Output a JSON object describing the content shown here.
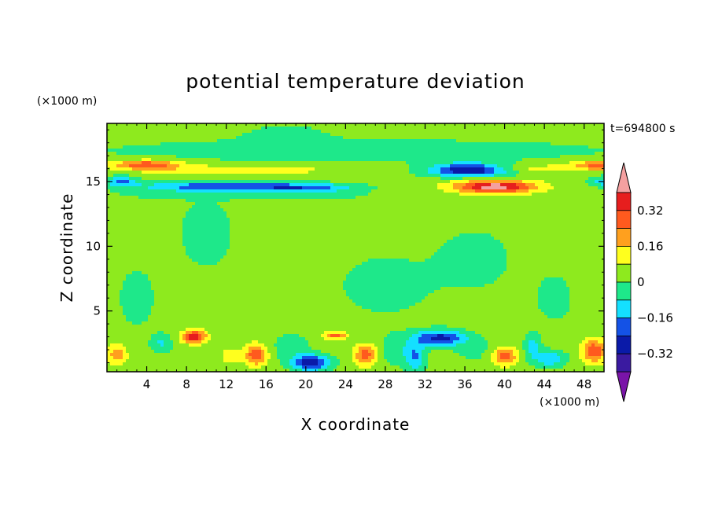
{
  "chart_data": {
    "type": "heatmap",
    "title": "potential temperature deviation",
    "xlabel": "X coordinate",
    "ylabel": "Z coordinate",
    "x_units": "(×1000 m)",
    "y_units": "(×1000 m)",
    "time_label": "t=694800 s",
    "xlim": [
      0,
      50
    ],
    "ylim": [
      0.3,
      19.5
    ],
    "x_ticks": [
      4,
      8,
      12,
      16,
      20,
      24,
      28,
      32,
      36,
      40,
      44,
      48
    ],
    "y_ticks": [
      5,
      10,
      15
    ],
    "background_value": 0.03,
    "colorbar": {
      "levels": [
        -0.4,
        -0.32,
        -0.24,
        -0.16,
        -0.08,
        0,
        0.08,
        0.16,
        0.24,
        0.32,
        0.4
      ],
      "colors": [
        "#7a14a8",
        "#3a1aa0",
        "#0a1aa8",
        "#1452e6",
        "#14e0ff",
        "#1ee88a",
        "#8eea1e",
        "#ffff1e",
        "#ffa01e",
        "#ff5a1e",
        "#e61e1e",
        "#f4a0a0"
      ],
      "tick_labels": [
        "0.32",
        "0.16",
        "0",
        "−0.16",
        "−0.32"
      ],
      "tick_values": [
        0.32,
        0.16,
        0,
        -0.16,
        -0.32
      ]
    },
    "features": [
      {
        "x": 25,
        "z": 17.4,
        "sx": 30,
        "sz": 1.0,
        "v": -0.06
      },
      {
        "x": 4,
        "z": 16.3,
        "sx": 3.5,
        "sz": 0.35,
        "v": 0.28
      },
      {
        "x": 49.5,
        "z": 16.3,
        "sx": 2.5,
        "sz": 0.35,
        "v": 0.24
      },
      {
        "x": 13,
        "z": 15.9,
        "sx": 9,
        "sz": 0.35,
        "v": 0.13
      },
      {
        "x": 11,
        "z": 14.6,
        "sx": 8,
        "sz": 0.4,
        "v": -0.24
      },
      {
        "x": 20,
        "z": 14.5,
        "sx": 5,
        "sz": 0.35,
        "v": -0.2
      },
      {
        "x": 14,
        "z": 13.9,
        "sx": 14,
        "sz": 0.3,
        "v": -0.06
      },
      {
        "x": 1.5,
        "z": 15,
        "sx": 1.5,
        "sz": 0.4,
        "v": -0.2
      },
      {
        "x": 36.5,
        "z": 15.9,
        "sx": 4,
        "sz": 0.5,
        "v": -0.4
      },
      {
        "x": 39,
        "z": 14.6,
        "sx": 4,
        "sz": 0.5,
        "v": 0.42
      },
      {
        "x": 42,
        "z": 16,
        "sx": 8,
        "sz": 0.35,
        "v": 0.1
      },
      {
        "x": 50,
        "z": 15,
        "sx": 1.5,
        "sz": 0.4,
        "v": -0.16
      },
      {
        "x": 8.8,
        "z": 3,
        "sx": 1.2,
        "sz": 0.5,
        "v": 0.36
      },
      {
        "x": 15,
        "z": 1.6,
        "sx": 1.1,
        "sz": 0.8,
        "v": 0.28
      },
      {
        "x": 26,
        "z": 1.6,
        "sx": 1.1,
        "sz": 0.8,
        "v": 0.26
      },
      {
        "x": 40,
        "z": 1.5,
        "sx": 1.3,
        "sz": 0.7,
        "v": 0.24
      },
      {
        "x": 49,
        "z": 1.9,
        "sx": 1.2,
        "sz": 0.9,
        "v": 0.28
      },
      {
        "x": 1,
        "z": 1.6,
        "sx": 1.0,
        "sz": 0.8,
        "v": 0.18
      },
      {
        "x": 23,
        "z": 3.1,
        "sx": 1.2,
        "sz": 0.3,
        "v": 0.24
      },
      {
        "x": 12.5,
        "z": 1.5,
        "sx": 1.0,
        "sz": 0.6,
        "v": 0.12
      },
      {
        "x": 20.5,
        "z": 1.0,
        "sx": 1.8,
        "sz": 0.6,
        "v": -0.34
      },
      {
        "x": 33.5,
        "z": 2.9,
        "sx": 2.5,
        "sz": 0.6,
        "v": -0.3
      },
      {
        "x": 31,
        "z": 1.5,
        "sx": 1.0,
        "sz": 1.2,
        "v": -0.2
      },
      {
        "x": 44.5,
        "z": 1.3,
        "sx": 1.6,
        "sz": 0.6,
        "v": -0.18
      },
      {
        "x": 18.5,
        "z": 2.2,
        "sx": 1.8,
        "sz": 1.0,
        "v": -0.08
      },
      {
        "x": 29,
        "z": 2.0,
        "sx": 1.3,
        "sz": 1.1,
        "v": -0.1
      },
      {
        "x": 5.5,
        "z": 2.5,
        "sx": 1.0,
        "sz": 0.7,
        "v": -0.12
      },
      {
        "x": 37,
        "z": 2.0,
        "sx": 2.0,
        "sz": 0.9,
        "v": -0.06
      },
      {
        "x": 42.8,
        "z": 2.3,
        "sx": 0.8,
        "sz": 0.9,
        "v": -0.14
      },
      {
        "x": 10,
        "z": 11,
        "sx": 3,
        "sz": 3,
        "v": -0.06
      },
      {
        "x": 28,
        "z": 7,
        "sx": 5,
        "sz": 2.5,
        "v": -0.06
      },
      {
        "x": 37,
        "z": 9,
        "sx": 4,
        "sz": 2.5,
        "v": -0.06
      },
      {
        "x": 3,
        "z": 6,
        "sx": 2,
        "sz": 2.5,
        "v": -0.06
      },
      {
        "x": 18,
        "z": 18.5,
        "sx": 4,
        "sz": 1.0,
        "v": -0.06
      },
      {
        "x": 45,
        "z": 6,
        "sx": 2,
        "sz": 2,
        "v": -0.06
      }
    ]
  }
}
